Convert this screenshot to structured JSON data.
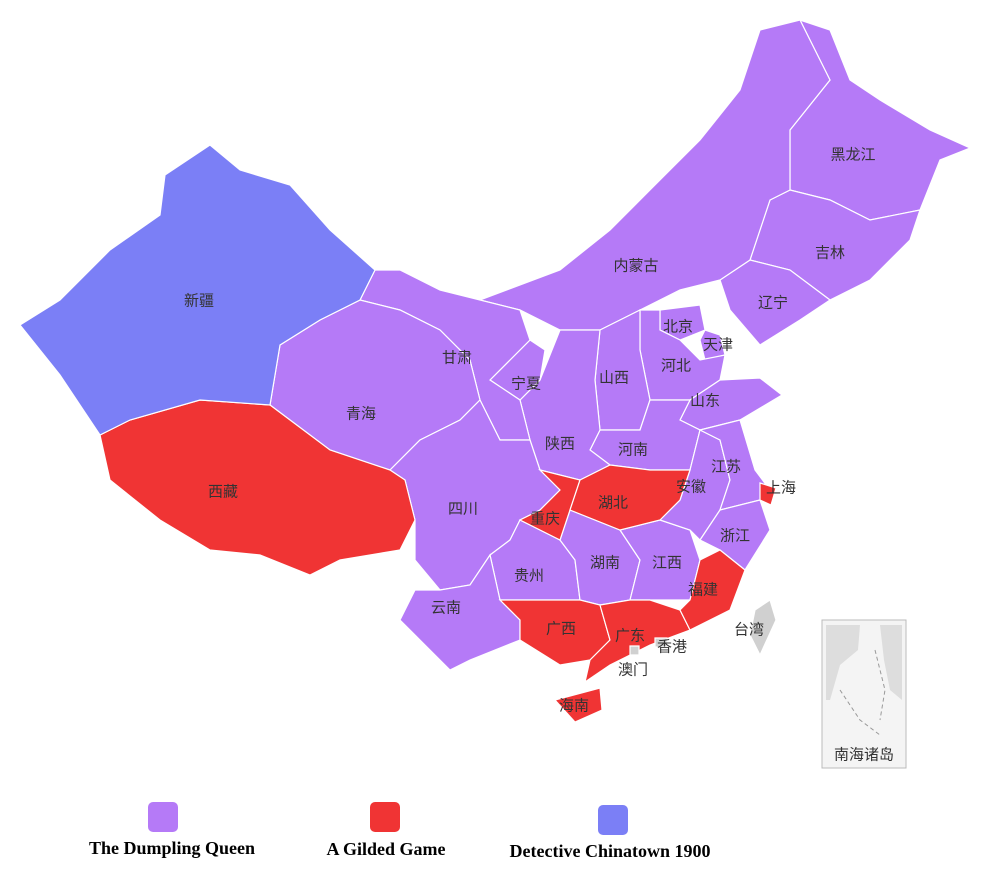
{
  "series": [
    {
      "name": "The Dumpling Queen",
      "color": "#b57af7",
      "regions": [
        "黑龙江",
        "吉林",
        "辽宁",
        "内蒙古",
        "北京",
        "天津",
        "河北",
        "山西",
        "山东",
        "河南",
        "陕西",
        "宁夏",
        "甘肃",
        "青海",
        "四川",
        "贵州",
        "云南",
        "湖南",
        "江西",
        "安徽",
        "江苏",
        "浙江"
      ]
    },
    {
      "name": "A Gilded Game",
      "color": "#f03434",
      "regions": [
        "西藏",
        "重庆",
        "湖北",
        "上海",
        "广西",
        "广东",
        "福建",
        "海南"
      ]
    },
    {
      "name": "Detective Chinatown 1900",
      "color": "#7b7ff6",
      "regions": [
        "新疆"
      ]
    }
  ],
  "unassigned": {
    "color": "#d0d0d0",
    "regions": [
      "台湾",
      "香港",
      "澳门"
    ]
  },
  "inset_label": "南海诸岛"
}
